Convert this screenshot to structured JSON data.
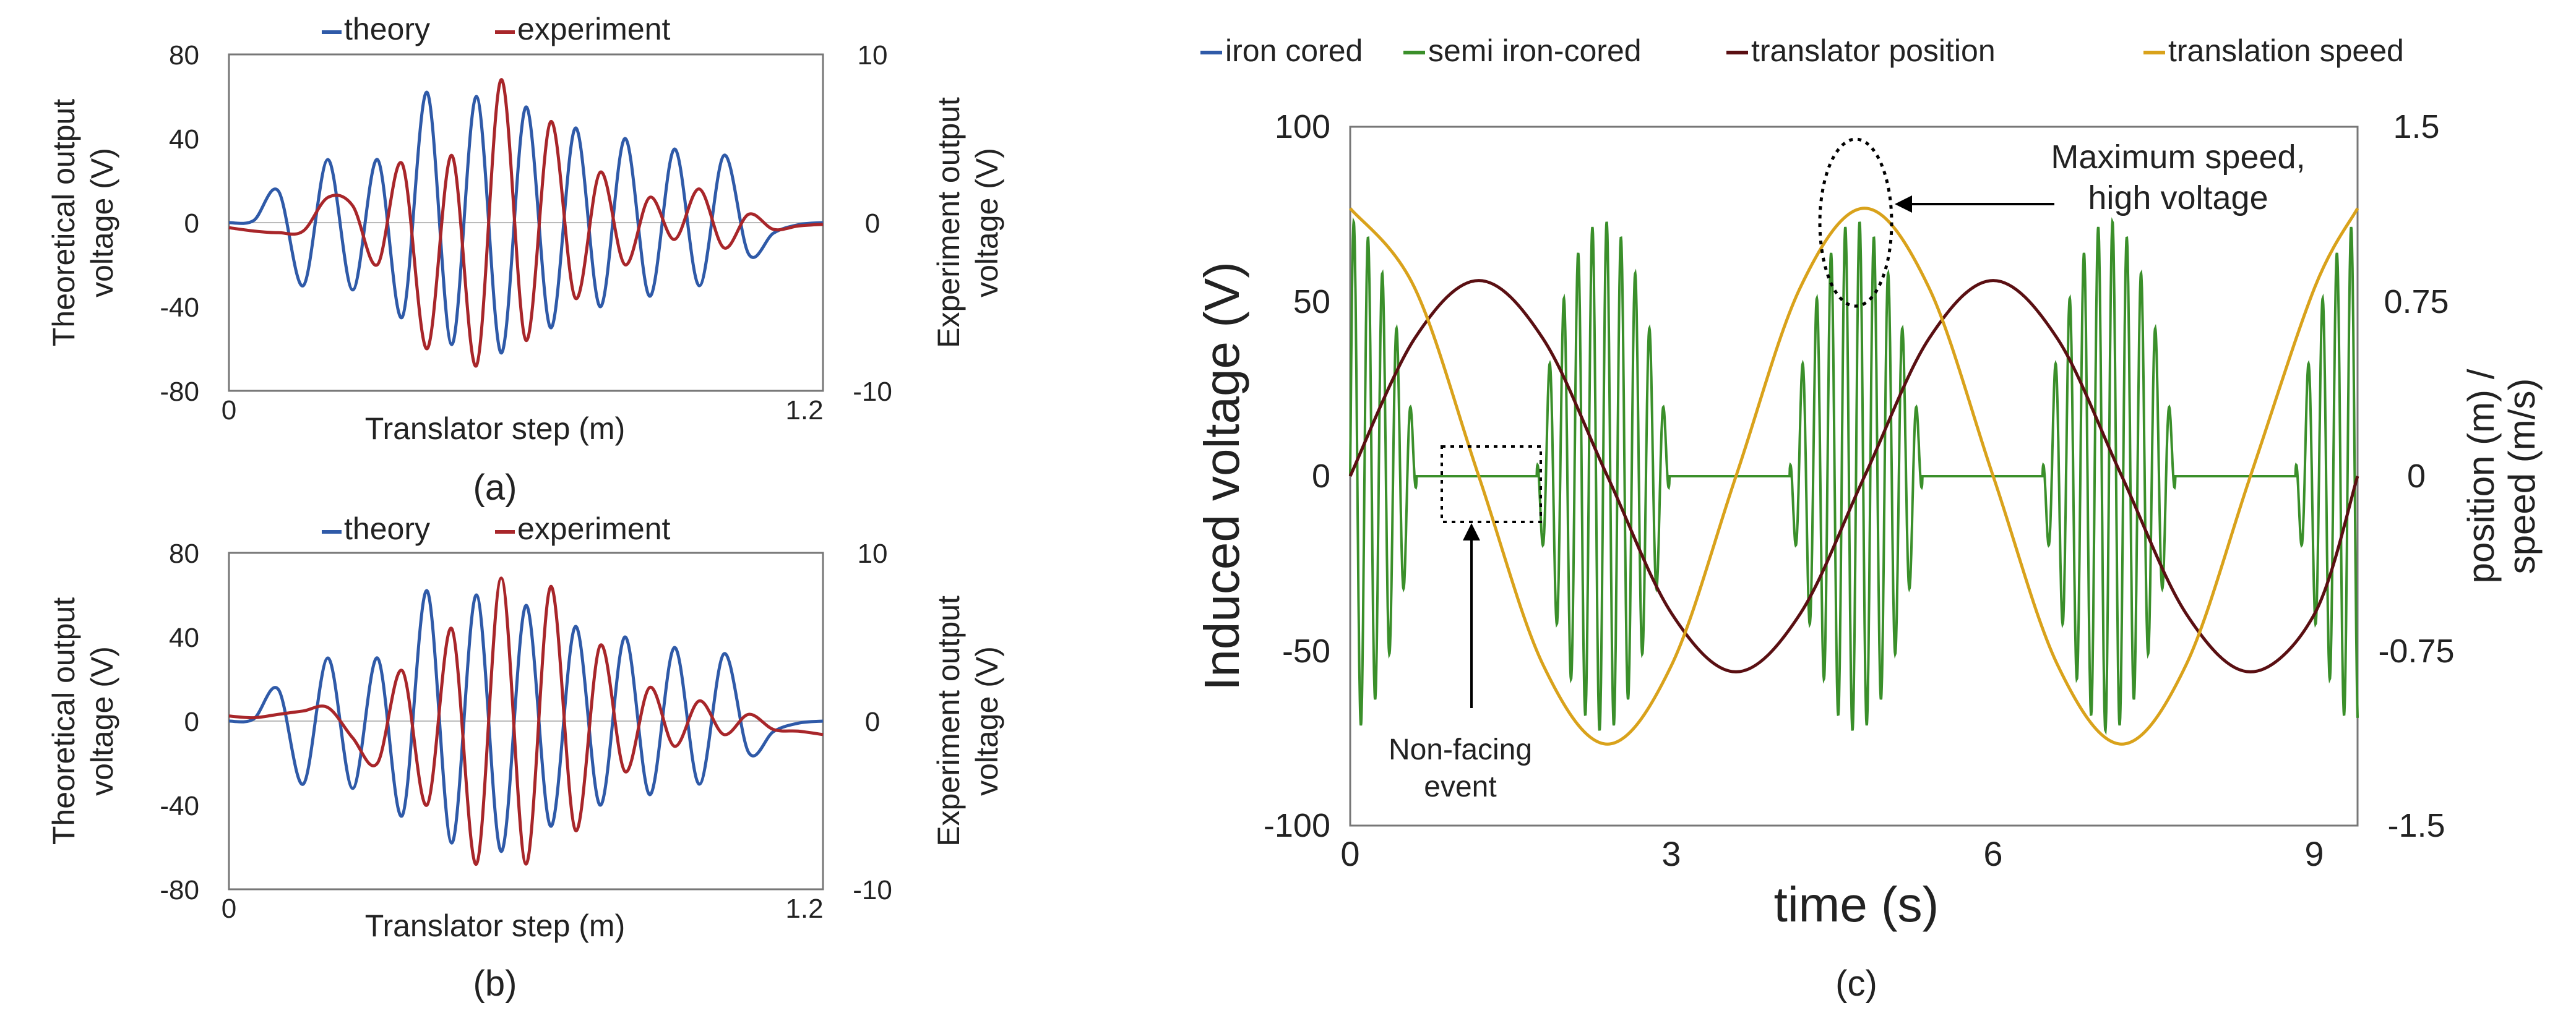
{
  "panels": [
    {
      "id": "a",
      "label": "(a)",
      "legend": [
        {
          "name": "theory",
          "color": "#2f5aa8"
        },
        {
          "name": "experiment",
          "color": "#a8262a"
        }
      ],
      "left_axis": {
        "label_lines": [
          "Theoretical output",
          "voltage (V)"
        ],
        "ticks": [
          80,
          40,
          0,
          -40,
          -80
        ],
        "range": [
          -80,
          80
        ]
      },
      "right_axis": {
        "label_lines": [
          "Experiment output",
          "voltage (V)"
        ],
        "ticks": [
          10,
          0,
          -10
        ],
        "range": [
          -10,
          10
        ]
      },
      "x_axis": {
        "label": "Translator step (m)",
        "ticks": [
          0,
          1.2
        ],
        "range": [
          0,
          1.2
        ]
      }
    },
    {
      "id": "b",
      "label": "(b)",
      "legend": [
        {
          "name": "theory",
          "color": "#2f5aa8"
        },
        {
          "name": "experiment",
          "color": "#a8262a"
        }
      ],
      "left_axis": {
        "label_lines": [
          "Theoretical output",
          "voltage (V)"
        ],
        "ticks": [
          80,
          40,
          0,
          -40,
          -80
        ],
        "range": [
          -80,
          80
        ]
      },
      "right_axis": {
        "label_lines": [
          "Experiment output",
          "voltage (V)"
        ],
        "ticks": [
          10,
          0,
          -10
        ],
        "range": [
          -10,
          10
        ]
      },
      "x_axis": {
        "label": "Translator step (m)",
        "ticks": [
          0,
          1.2
        ],
        "range": [
          0,
          1.2
        ]
      }
    },
    {
      "id": "c",
      "label": "(c)",
      "legend": [
        {
          "name": "iron cored",
          "color": "#2f5aa8"
        },
        {
          "name": "semi iron-cored",
          "color": "#3a8f2a"
        },
        {
          "name": "translator position",
          "color": "#5a0f12"
        },
        {
          "name": "translation speed",
          "color": "#d9a21b"
        }
      ],
      "left_axis": {
        "label_lines": [
          "Induced voltage (V)"
        ],
        "ticks": [
          100,
          50,
          0,
          -50,
          -100
        ],
        "range": [
          -100,
          100
        ]
      },
      "right_axis": {
        "label_lines": [
          "position (m) /",
          "speed (m/s)"
        ],
        "ticks": [
          "1.5",
          "0.75",
          "0",
          "-0.75",
          "-1.5"
        ],
        "range": [
          -1.5,
          1.5
        ]
      },
      "x_axis": {
        "label": "time (s)",
        "ticks": [
          0,
          3,
          6,
          9
        ],
        "range": [
          0,
          9.4
        ]
      },
      "annotations": [
        {
          "id": "max_speed",
          "lines": [
            "Maximum speed,",
            "high voltage"
          ]
        },
        {
          "id": "non_facing",
          "lines": [
            "Non-facing",
            "event"
          ]
        }
      ]
    }
  ],
  "chart_data": [
    {
      "type": "line",
      "panel": "a",
      "x": [
        0,
        0.05,
        0.1,
        0.15,
        0.2,
        0.25,
        0.3,
        0.35,
        0.4,
        0.45,
        0.5,
        0.55,
        0.6,
        0.65,
        0.7,
        0.75,
        0.8,
        0.85,
        0.9,
        0.95,
        1.0,
        1.05,
        1.1,
        1.15,
        1.2
      ],
      "series": [
        {
          "name": "theory",
          "axis": "left",
          "values": [
            0,
            1,
            15,
            -30,
            30,
            -32,
            30,
            -45,
            62,
            -58,
            60,
            -62,
            55,
            -50,
            45,
            -40,
            40,
            -35,
            35,
            -30,
            32,
            -15,
            -5,
            -1,
            0
          ]
        },
        {
          "name": "experiment",
          "axis": "right",
          "values": [
            -0.3,
            -0.5,
            -0.6,
            -0.5,
            1.5,
            1.0,
            -2.5,
            3.5,
            -7.5,
            4.0,
            -8.5,
            8.5,
            -7.0,
            6.0,
            -4.5,
            3.0,
            -2.5,
            1.5,
            -1.0,
            2.0,
            -1.5,
            0.5,
            -0.4,
            -0.2,
            -0.1
          ]
        }
      ],
      "title": "",
      "xlabel": "Translator step (m)",
      "ylabel": "Theoretical output voltage (V)",
      "y2label": "Experiment output voltage (V)",
      "xlim": [
        0,
        1.2
      ],
      "ylim": [
        -80,
        80
      ],
      "y2lim": [
        -10,
        10
      ]
    },
    {
      "type": "line",
      "panel": "b",
      "x": [
        0,
        0.05,
        0.1,
        0.15,
        0.2,
        0.25,
        0.3,
        0.35,
        0.4,
        0.45,
        0.5,
        0.55,
        0.6,
        0.65,
        0.7,
        0.75,
        0.8,
        0.85,
        0.9,
        0.95,
        1.0,
        1.05,
        1.1,
        1.15,
        1.2
      ],
      "series": [
        {
          "name": "theory",
          "axis": "left",
          "values": [
            0,
            1,
            15,
            -30,
            30,
            -32,
            30,
            -45,
            62,
            -58,
            60,
            -62,
            55,
            -50,
            45,
            -40,
            40,
            -35,
            35,
            -30,
            32,
            -15,
            -5,
            -1,
            0
          ]
        },
        {
          "name": "experiment",
          "axis": "right",
          "values": [
            0.3,
            0.2,
            0.4,
            0.6,
            0.8,
            -1.0,
            -2.5,
            3.0,
            -5.0,
            5.5,
            -8.5,
            8.5,
            -8.5,
            8.0,
            -6.5,
            4.5,
            -3.0,
            2.0,
            -1.5,
            1.2,
            -0.8,
            0.4,
            -0.5,
            -0.6,
            -0.8
          ]
        }
      ],
      "title": "",
      "xlabel": "Translator step (m)",
      "ylabel": "Theoretical output voltage (V)",
      "y2label": "Experiment output voltage (V)",
      "xlim": [
        0,
        1.2
      ],
      "ylim": [
        -80,
        80
      ],
      "y2lim": [
        -10,
        10
      ]
    },
    {
      "type": "line",
      "panel": "c",
      "x": [
        0,
        0.6,
        1.2,
        1.8,
        2.4,
        3.0,
        3.6,
        4.2,
        4.8,
        5.4,
        6.0,
        6.6,
        7.2,
        7.8,
        8.4,
        9.0,
        9.4
      ],
      "series": [
        {
          "name": "translator position",
          "axis": "right",
          "values": [
            0,
            0.59,
            0.84,
            0.59,
            0,
            -0.59,
            -0.84,
            -0.59,
            0,
            0.59,
            0.84,
            0.59,
            0,
            -0.59,
            -0.84,
            -0.59,
            0
          ]
        },
        {
          "name": "translation speed",
          "axis": "right",
          "values": [
            1.15,
            0.81,
            0,
            -0.81,
            -1.15,
            -0.81,
            0,
            0.81,
            1.15,
            0.81,
            0,
            -0.81,
            -1.15,
            -0.81,
            0,
            0.81,
            1.15
          ]
        },
        {
          "name": "semi iron-cored",
          "axis": "left",
          "peak_amplitude": 73,
          "burst_centers": [
            0,
            2.36,
            4.72,
            7.08,
            9.44
          ],
          "burst_amplitudes_at_center": [
            73,
            73,
            73,
            73,
            73
          ]
        }
      ],
      "title": "",
      "xlabel": "time (s)",
      "ylabel": "Induced voltage (V)",
      "y2label": "position (m) / speed (m/s)",
      "xlim": [
        0,
        9.4
      ],
      "ylim": [
        -100,
        100
      ],
      "y2lim": [
        -1.5,
        1.5
      ]
    }
  ]
}
